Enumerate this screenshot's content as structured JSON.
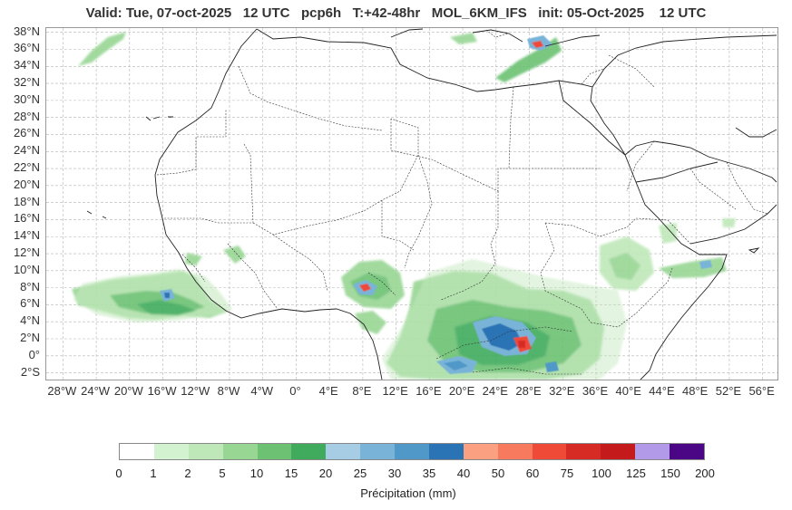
{
  "title": "Valid: Tue, 07-oct-2025   12 UTC   pcp6h   T:+42-48hr   MOL_6KM_IFS   init: 05-Oct-2025    12 UTC",
  "map": {
    "lon_range": [
      -30,
      58
    ],
    "lat_range": [
      -3,
      38.5
    ],
    "lat_ticks": [
      {
        "value": 38,
        "label": "38°N"
      },
      {
        "value": 36,
        "label": "36°N"
      },
      {
        "value": 34,
        "label": "34°N"
      },
      {
        "value": 32,
        "label": "32°N"
      },
      {
        "value": 30,
        "label": "30°N"
      },
      {
        "value": 28,
        "label": "28°N"
      },
      {
        "value": 26,
        "label": "26°N"
      },
      {
        "value": 24,
        "label": "24°N"
      },
      {
        "value": 22,
        "label": "22°N"
      },
      {
        "value": 20,
        "label": "20°N"
      },
      {
        "value": 18,
        "label": "18°N"
      },
      {
        "value": 16,
        "label": "16°N"
      },
      {
        "value": 14,
        "label": "14°N"
      },
      {
        "value": 12,
        "label": "12°N"
      },
      {
        "value": 10,
        "label": "10°N"
      },
      {
        "value": 8,
        "label": "8°N"
      },
      {
        "value": 6,
        "label": "6°N"
      },
      {
        "value": 4,
        "label": "4°N"
      },
      {
        "value": 2,
        "label": "2°N"
      },
      {
        "value": 0,
        "label": "0°"
      },
      {
        "value": -2,
        "label": "2°S"
      }
    ],
    "lon_ticks": [
      {
        "value": -28,
        "label": "28°W"
      },
      {
        "value": -24,
        "label": "24°W"
      },
      {
        "value": -20,
        "label": "20°W"
      },
      {
        "value": -16,
        "label": "16°W"
      },
      {
        "value": -12,
        "label": "12°W"
      },
      {
        "value": -8,
        "label": "8°W"
      },
      {
        "value": -4,
        "label": "4°W"
      },
      {
        "value": 0,
        "label": "0°"
      },
      {
        "value": 4,
        "label": "4°E"
      },
      {
        "value": 8,
        "label": "8°E"
      },
      {
        "value": 12,
        "label": "12°E"
      },
      {
        "value": 16,
        "label": "16°E"
      },
      {
        "value": 20,
        "label": "20°E"
      },
      {
        "value": 24,
        "label": "24°E"
      },
      {
        "value": 28,
        "label": "28°E"
      },
      {
        "value": 32,
        "label": "32°E"
      },
      {
        "value": 36,
        "label": "36°E"
      },
      {
        "value": 40,
        "label": "40°E"
      },
      {
        "value": 44,
        "label": "44°E"
      },
      {
        "value": 48,
        "label": "48°E"
      },
      {
        "value": 52,
        "label": "52°E"
      },
      {
        "value": 56,
        "label": "56°E"
      }
    ],
    "gridlines": true
  },
  "colorbar": {
    "title": "Précipitation (mm)",
    "labels": [
      "0",
      "1",
      "2",
      "5",
      "10",
      "15",
      "20",
      "25",
      "30",
      "35",
      "40",
      "50",
      "60",
      "75",
      "100",
      "125",
      "150",
      "200"
    ],
    "colors": [
      "#ffffff",
      "#d3f2d0",
      "#bfe8b9",
      "#98d694",
      "#6cc173",
      "#41ab5d",
      "#a6cde3",
      "#79b4d8",
      "#4f98c8",
      "#2a73b5",
      "#fca082",
      "#f87a5e",
      "#ef4a37",
      "#d62a25",
      "#c41a1c",
      "#b39ae8",
      "#4a0685"
    ]
  }
}
